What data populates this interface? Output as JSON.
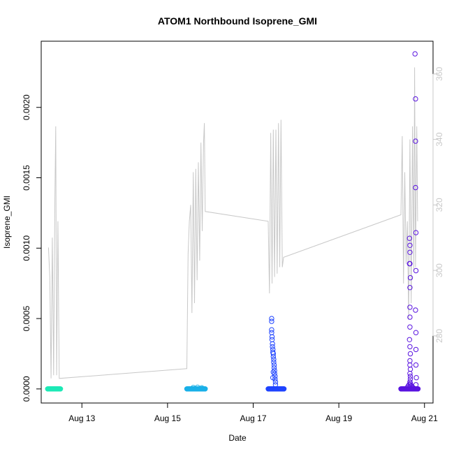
{
  "chart_data": {
    "type": "scatter",
    "title": "ATOM1 Northbound Isoprene_GMI",
    "xlabel": "Date",
    "ylabel": "Isoprene_GMI",
    "x_ticks": [
      "Aug 13",
      "Aug 15",
      "Aug 17",
      "Aug 19",
      "Aug 21"
    ],
    "x_tick_days": [
      13,
      15,
      17,
      19,
      21
    ],
    "xlim": [
      12.05,
      21.2
    ],
    "y_ticks": [
      "0.0000",
      "0.0005",
      "0.0010",
      "0.0015",
      "0.0020"
    ],
    "y_tick_values": [
      0,
      0.0005,
      0.001,
      0.0015,
      0.002
    ],
    "ylim": [
      -0.0001,
      0.00247
    ],
    "y2_ticks": [
      "280",
      "300",
      "320",
      "340",
      "360"
    ],
    "y2_tick_values": [
      280,
      300,
      320,
      340,
      360
    ],
    "y2lim": [
      259.5,
      370.0
    ],
    "y2_color": "#c8c8c8",
    "line_series": {
      "color": "#c8c8c8",
      "axis": "right",
      "points": [
        [
          12.22,
          307
        ],
        [
          12.25,
          298
        ],
        [
          12.28,
          267
        ],
        [
          12.31,
          310
        ],
        [
          12.34,
          268
        ],
        [
          12.37,
          322
        ],
        [
          12.39,
          344
        ],
        [
          12.41,
          268
        ],
        [
          12.44,
          315
        ],
        [
          12.47,
          267
        ],
        [
          15.45,
          270
        ],
        [
          15.48,
          305
        ],
        [
          15.51,
          315
        ],
        [
          15.54,
          320
        ],
        [
          15.57,
          287
        ],
        [
          15.6,
          330
        ],
        [
          15.63,
          290
        ],
        [
          15.66,
          331
        ],
        [
          15.69,
          297
        ],
        [
          15.72,
          333
        ],
        [
          15.75,
          303
        ],
        [
          15.78,
          339
        ],
        [
          15.81,
          312
        ],
        [
          15.84,
          339
        ],
        [
          15.86,
          345
        ],
        [
          15.88,
          318
        ],
        [
          17.35,
          315
        ],
        [
          17.38,
          293
        ],
        [
          17.41,
          342
        ],
        [
          17.44,
          296
        ],
        [
          17.47,
          343
        ],
        [
          17.5,
          298
        ],
        [
          17.53,
          343
        ],
        [
          17.56,
          299
        ],
        [
          17.59,
          345
        ],
        [
          17.62,
          301
        ],
        [
          17.65,
          346
        ],
        [
          17.68,
          301
        ],
        [
          17.71,
          304
        ],
        [
          20.45,
          317
        ],
        [
          20.48,
          341
        ],
        [
          20.51,
          296
        ],
        [
          20.54,
          330
        ],
        [
          20.57,
          302
        ],
        [
          20.6,
          315
        ],
        [
          20.63,
          285
        ],
        [
          20.66,
          340
        ],
        [
          20.69,
          290
        ],
        [
          20.72,
          344
        ],
        [
          20.75,
          300
        ],
        [
          20.77,
          362
        ],
        [
          20.79,
          301
        ],
        [
          20.82,
          344
        ],
        [
          20.84,
          315
        ]
      ]
    },
    "point_series": [
      {
        "color": "#1de9b6",
        "x_range": [
          12.2,
          12.5
        ],
        "baseline": 0.0,
        "spikes": []
      },
      {
        "color": "#1ab0e8",
        "x_range": [
          15.45,
          15.88
        ],
        "baseline": 0.0,
        "spikes": [
          [
            15.6,
            1e-05
          ],
          [
            15.7,
            1.2e-05
          ],
          [
            15.8,
            8e-06
          ]
        ]
      },
      {
        "color": "#1f44ff",
        "x_range": [
          17.35,
          17.72
        ],
        "baseline": 0.0,
        "spikes": [
          [
            17.43,
            0.0005
          ],
          [
            17.43,
            0.00048
          ],
          [
            17.43,
            0.00042
          ],
          [
            17.43,
            0.0004
          ],
          [
            17.44,
            0.00037
          ],
          [
            17.44,
            0.00035
          ],
          [
            17.45,
            0.00032
          ],
          [
            17.45,
            0.0003
          ],
          [
            17.46,
            0.00028
          ],
          [
            17.46,
            0.00026
          ],
          [
            17.47,
            0.00025
          ],
          [
            17.47,
            0.00023
          ],
          [
            17.48,
            0.00021
          ],
          [
            17.48,
            0.00019
          ],
          [
            17.49,
            0.00017
          ],
          [
            17.49,
            0.00015
          ],
          [
            17.5,
            0.00013
          ],
          [
            17.5,
            0.00011
          ],
          [
            17.51,
            9e-05
          ],
          [
            17.51,
            7e-05
          ],
          [
            17.52,
            5e-05
          ],
          [
            17.52,
            3e-05
          ],
          [
            17.47,
            0.00012
          ],
          [
            17.46,
            8e-05
          ]
        ]
      },
      {
        "color": "#5a14e0",
        "x_range": [
          20.45,
          20.85
        ],
        "baseline": 0.0,
        "spikes": [
          [
            20.78,
            0.00238
          ],
          [
            20.79,
            0.00206
          ],
          [
            20.79,
            0.00176
          ],
          [
            20.79,
            0.00143
          ],
          [
            20.8,
            0.00111
          ],
          [
            20.8,
            0.00084
          ],
          [
            20.79,
            0.00056
          ],
          [
            20.8,
            0.0004
          ],
          [
            20.8,
            0.00028
          ],
          [
            20.8,
            0.00017
          ],
          [
            20.81,
            8e-05
          ],
          [
            20.8,
            3e-05
          ],
          [
            20.65,
            0.00107
          ],
          [
            20.66,
            0.00102
          ],
          [
            20.66,
            0.00097
          ],
          [
            20.66,
            0.00089
          ],
          [
            20.65,
            0.00089
          ],
          [
            20.67,
            0.00079
          ],
          [
            20.66,
            0.00072
          ],
          [
            20.66,
            0.00058
          ],
          [
            20.66,
            0.00051
          ],
          [
            20.66,
            0.00044
          ],
          [
            20.65,
            0.00035
          ],
          [
            20.66,
            0.0003
          ],
          [
            20.67,
            0.00025
          ],
          [
            20.66,
            0.0002
          ],
          [
            20.66,
            0.00017
          ],
          [
            20.67,
            0.00014
          ],
          [
            20.66,
            0.00011
          ],
          [
            20.67,
            9e-05
          ],
          [
            20.67,
            7e-05
          ],
          [
            20.66,
            5e-05
          ],
          [
            20.67,
            4e-05
          ],
          [
            20.67,
            3e-05
          ],
          [
            20.68,
            2e-05
          ],
          [
            20.6,
            1e-05
          ],
          [
            20.62,
            2e-05
          ],
          [
            20.64,
            3e-05
          ],
          [
            20.7,
            2e-05
          ],
          [
            20.73,
            1e-05
          ]
        ]
      }
    ],
    "grid": false,
    "legend": "none"
  }
}
